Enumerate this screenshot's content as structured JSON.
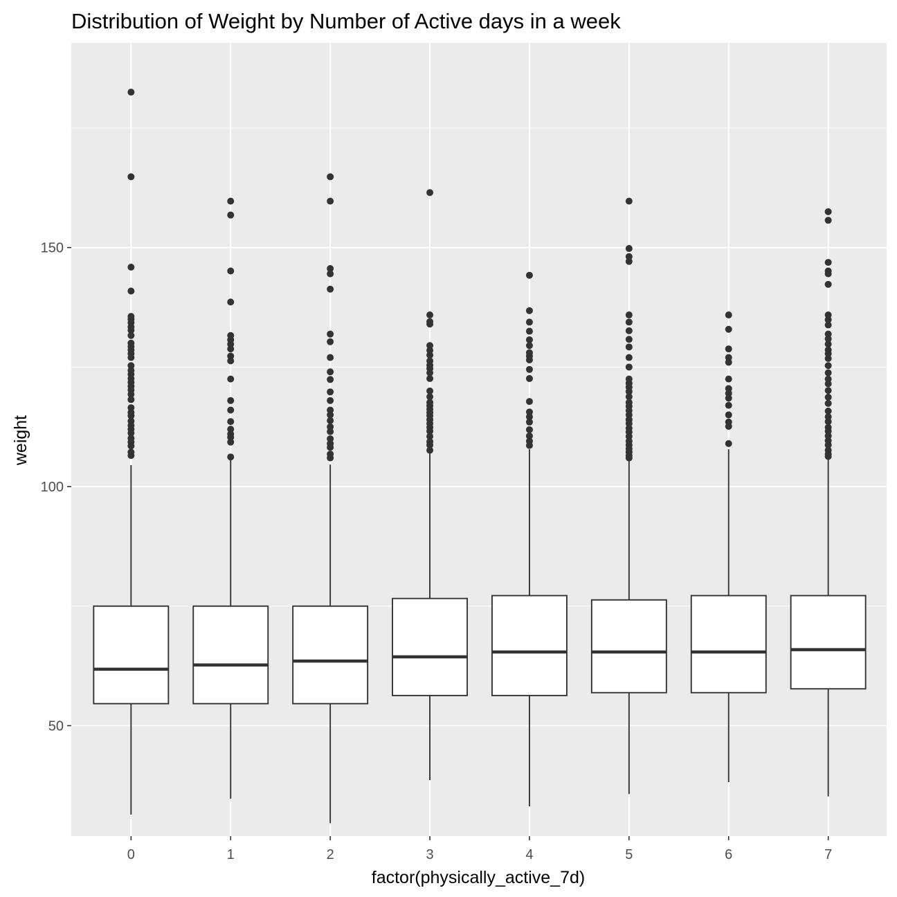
{
  "chart_data": {
    "type": "boxplot",
    "title": "Distribution of Weight by Number of Active days in a week",
    "xlabel": "factor(physically_active_7d)",
    "ylabel": "weight",
    "categories": [
      "0",
      "1",
      "2",
      "3",
      "4",
      "5",
      "6",
      "7"
    ],
    "ylim": [
      26.9,
      192.8
    ],
    "y_ticks": [
      50,
      100,
      150
    ],
    "grid": true,
    "colors": {
      "panel": "#ebebeb",
      "grid": "#ffffff",
      "box_fill": "#ffffff",
      "box_line": "#333333",
      "tick_text": "#4d4d4d"
    },
    "boxes": [
      {
        "category": "0",
        "whisker_low": 31.4,
        "q1": 54.6,
        "median": 61.8,
        "q3": 75.0,
        "whisker_high": 104.5,
        "outliers": [
          182.5,
          164.8,
          145.9,
          140.9,
          135.6,
          135.0,
          134.3,
          133.4,
          132.7,
          131.6,
          130.0,
          129.3,
          128.6,
          127.8,
          127.0,
          125.3,
          124.3,
          123.5,
          122.6,
          121.8,
          121.0,
          120.2,
          119.3,
          118.2,
          116.5,
          115.5,
          114.8,
          113.7,
          112.8,
          112.0,
          111.2,
          110.1,
          109.3,
          108.5,
          107.2,
          106.5
        ]
      },
      {
        "category": "1",
        "whisker_low": 34.7,
        "q1": 54.6,
        "median": 62.7,
        "q3": 75.0,
        "whisker_high": 105.6,
        "outliers": [
          159.7,
          156.8,
          145.1,
          138.6,
          131.6,
          130.7,
          129.8,
          128.8,
          127.3,
          126.3,
          122.5,
          118.0,
          116.0,
          113.6,
          112.0,
          111.0,
          110.3,
          109.3,
          106.2
        ]
      },
      {
        "category": "2",
        "whisker_low": 29.6,
        "q1": 54.6,
        "median": 63.5,
        "q3": 75.0,
        "whisker_high": 104.6,
        "outliers": [
          164.8,
          159.7,
          145.6,
          144.5,
          141.3,
          131.9,
          130.3,
          127.0,
          124.0,
          122.4,
          119.8,
          118.0,
          116.0,
          115.0,
          113.8,
          112.5,
          111.5,
          110.0,
          109.0,
          108.2,
          106.8,
          106.0
        ]
      },
      {
        "category": "3",
        "whisker_low": 38.6,
        "q1": 56.3,
        "median": 64.4,
        "q3": 76.6,
        "whisker_high": 107.5,
        "outliers": [
          161.5,
          135.9,
          134.5,
          134.0,
          129.5,
          128.5,
          127.5,
          126.3,
          125.4,
          124.7,
          123.8,
          122.6,
          120.0,
          118.8,
          117.6,
          116.9,
          116.2,
          115.5,
          114.8,
          114.0,
          113.2,
          112.4,
          111.6,
          110.5,
          109.4,
          108.7,
          107.6
        ]
      },
      {
        "category": "4",
        "whisker_low": 33.1,
        "q1": 56.3,
        "median": 65.4,
        "q3": 77.2,
        "whisker_high": 107.8,
        "outliers": [
          144.2,
          136.8,
          134.4,
          132.5,
          130.7,
          129.5,
          128.0,
          127.3,
          126.5,
          124.5,
          122.6,
          117.8,
          115.6,
          114.6,
          113.5,
          111.9,
          110.6,
          109.5,
          108.6
        ]
      },
      {
        "category": "5",
        "whisker_low": 35.7,
        "q1": 56.9,
        "median": 65.4,
        "q3": 76.3,
        "whisker_high": 105.4,
        "outliers": [
          159.7,
          149.8,
          148.1,
          147.1,
          135.9,
          134.4,
          132.6,
          130.8,
          129.2,
          127.0,
          125.0,
          122.5,
          121.6,
          120.8,
          119.9,
          118.8,
          117.6,
          116.8,
          115.9,
          115.0,
          114.0,
          113.2,
          112.2,
          111.4,
          110.5,
          109.5,
          108.7,
          107.9,
          107.2,
          106.5,
          106.0
        ]
      },
      {
        "category": "6",
        "whisker_low": 38.2,
        "q1": 56.9,
        "median": 65.4,
        "q3": 77.2,
        "whisker_high": 107.8,
        "outliers": [
          135.9,
          132.9,
          128.8,
          127.0,
          126.0,
          122.5,
          120.5,
          119.5,
          118.5,
          117.0,
          115.0,
          113.5,
          112.6,
          109.0
        ]
      },
      {
        "category": "7",
        "whisker_low": 35.2,
        "q1": 57.7,
        "median": 65.9,
        "q3": 77.2,
        "whisker_high": 107.2,
        "outliers": [
          157.5,
          155.7,
          146.9,
          145.1,
          144.5,
          142.3,
          135.9,
          134.9,
          133.8,
          131.9,
          130.9,
          129.8,
          128.6,
          127.8,
          126.8,
          125.3,
          123.8,
          122.5,
          121.5,
          120.1,
          118.7,
          117.4,
          115.8,
          114.6,
          113.6,
          112.4,
          111.6,
          110.6,
          109.6,
          108.7,
          107.6,
          106.8,
          106.3
        ]
      }
    ]
  }
}
